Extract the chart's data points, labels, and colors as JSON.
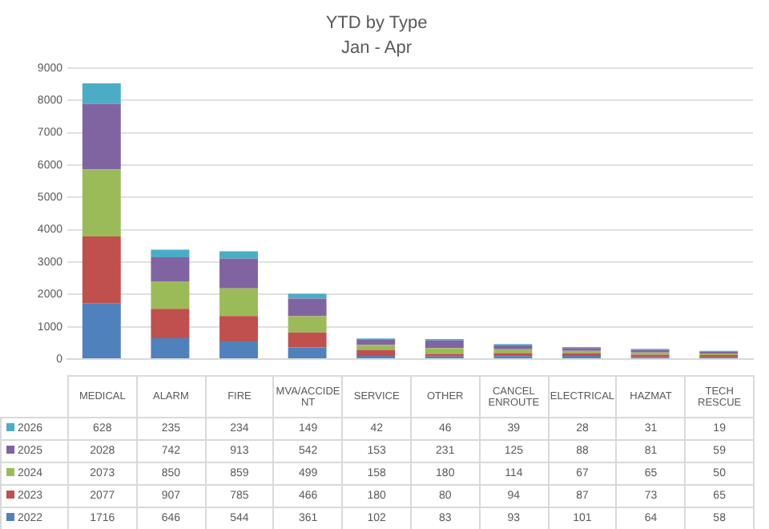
{
  "chart_data": {
    "type": "bar",
    "title": "YTD by Type",
    "subtitle": "Jan - Apr",
    "categories": [
      "MEDICAL",
      "ALARM",
      "FIRE",
      "MVA/ACCIDENT",
      "SERVICE",
      "OTHER",
      "CANCEL ENROUTE",
      "ELECTRICAL",
      "HAZMAT",
      "TECH RESCUE"
    ],
    "series": [
      {
        "name": "2022",
        "color": "#4f81bd",
        "values": [
          1716,
          646,
          544,
          361,
          102,
          83,
          93,
          101,
          64,
          58
        ]
      },
      {
        "name": "2023",
        "color": "#c0504d",
        "values": [
          2077,
          907,
          785,
          466,
          180,
          80,
          94,
          87,
          73,
          65
        ]
      },
      {
        "name": "2024",
        "color": "#9bbb59",
        "values": [
          2073,
          850,
          859,
          499,
          158,
          180,
          114,
          67,
          65,
          50
        ]
      },
      {
        "name": "2025",
        "color": "#8064a2",
        "values": [
          2028,
          742,
          913,
          542,
          153,
          231,
          125,
          88,
          81,
          59
        ]
      },
      {
        "name": "2026",
        "color": "#4bacc6",
        "values": [
          628,
          235,
          234,
          149,
          42,
          46,
          39,
          28,
          31,
          19
        ]
      }
    ],
    "stacked": true,
    "ylim": [
      0,
      9000
    ],
    "yticks": [
      0,
      1000,
      2000,
      3000,
      4000,
      5000,
      6000,
      7000,
      8000,
      9000
    ],
    "grid": "y",
    "legend": "bottom",
    "data_labels": true
  }
}
